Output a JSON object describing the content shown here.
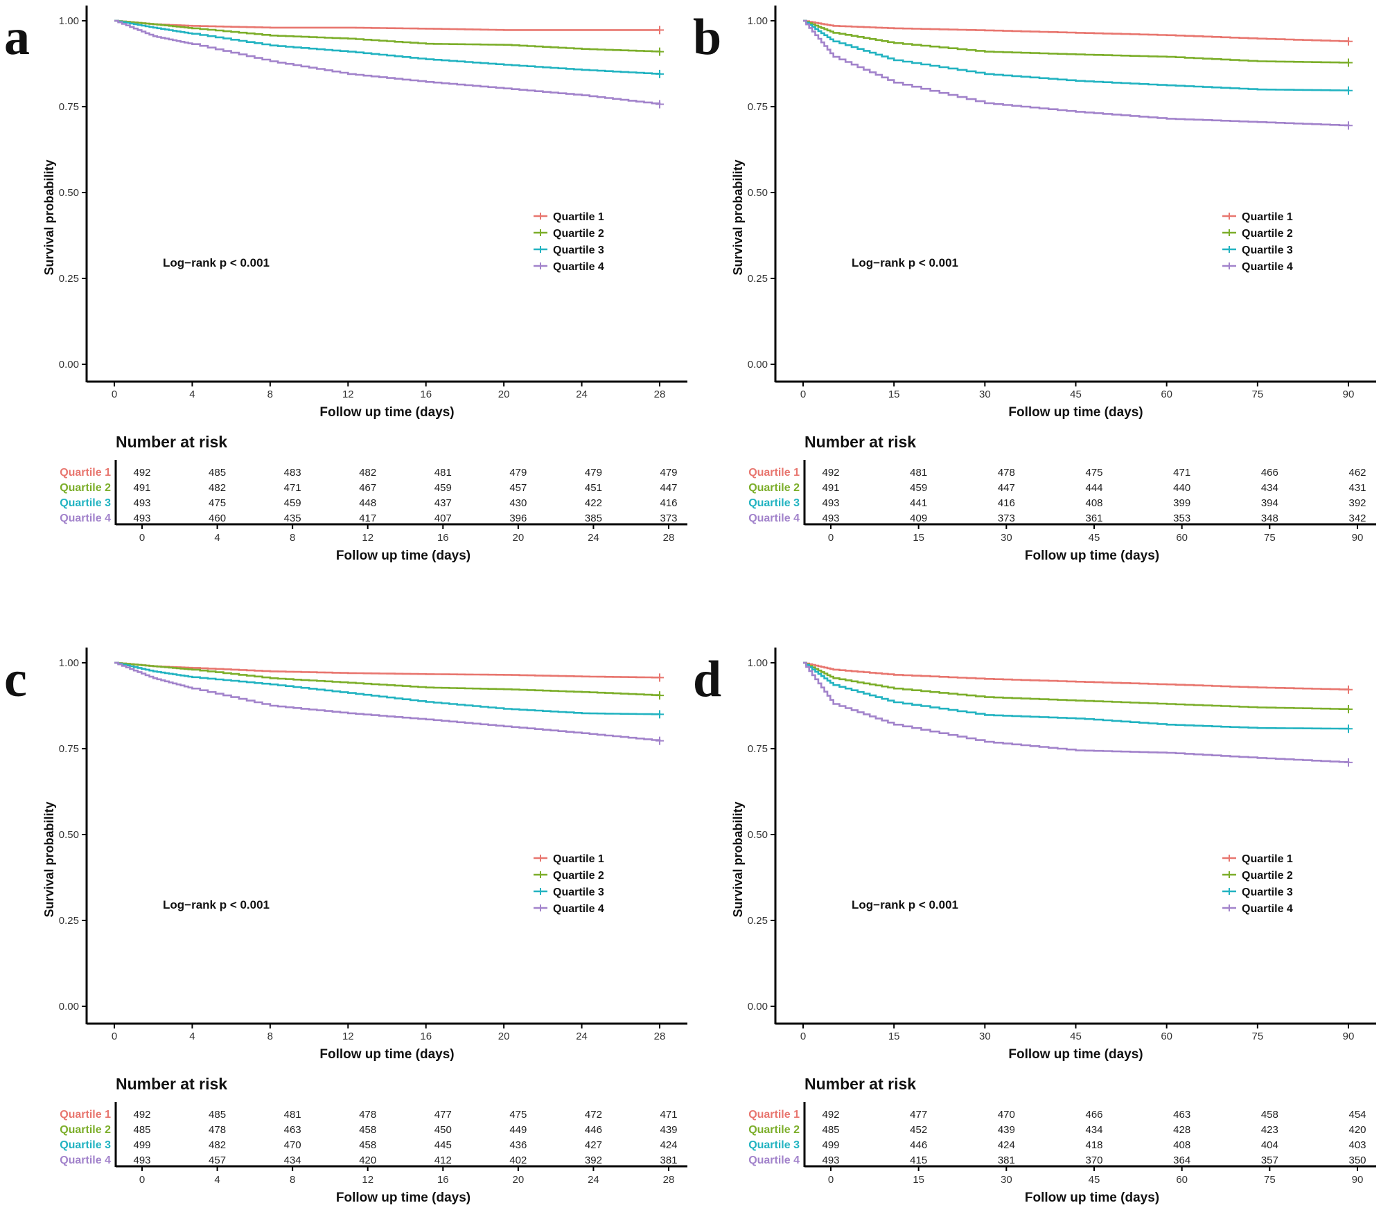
{
  "colors": {
    "Quartile 1": "#E8766F",
    "Quartile 2": "#7CAE2A",
    "Quartile 3": "#22B3C1",
    "Quartile 4": "#A283CB",
    "axis": "#000000",
    "text": "#222222"
  },
  "chart_data": [
    {
      "type": "line",
      "panel": "a",
      "ylabel": "Survival probability",
      "xlabel": "Follow up time (days)",
      "ylim": [
        0,
        1
      ],
      "yticks": [
        "0.00",
        "0.25",
        "0.50",
        "0.75",
        "1.00"
      ],
      "xlim": [
        0,
        28
      ],
      "xticks": [
        0,
        4,
        8,
        12,
        16,
        20,
        24,
        28
      ],
      "annotation": "Log−rank p < 0.001",
      "legend_position": "right-middle",
      "series": [
        {
          "name": "Quartile 1",
          "x": [
            0,
            2,
            4,
            8,
            12,
            16,
            20,
            24,
            28
          ],
          "y": [
            1.0,
            0.99,
            0.985,
            0.98,
            0.98,
            0.977,
            0.973,
            0.973,
            0.973
          ]
        },
        {
          "name": "Quartile 2",
          "x": [
            0,
            2,
            4,
            8,
            12,
            16,
            20,
            24,
            28
          ],
          "y": [
            1.0,
            0.99,
            0.978,
            0.957,
            0.948,
            0.933,
            0.93,
            0.918,
            0.91
          ]
        },
        {
          "name": "Quartile 3",
          "x": [
            0,
            2,
            4,
            8,
            12,
            16,
            20,
            24,
            28
          ],
          "y": [
            1.0,
            0.98,
            0.962,
            0.928,
            0.91,
            0.888,
            0.872,
            0.857,
            0.845
          ]
        },
        {
          "name": "Quartile 4",
          "x": [
            0,
            2,
            4,
            8,
            12,
            16,
            20,
            24,
            28
          ],
          "y": [
            1.0,
            0.955,
            0.932,
            0.882,
            0.845,
            0.822,
            0.803,
            0.783,
            0.757
          ]
        }
      ],
      "risk_table": {
        "title": "Number at risk",
        "times": [
          "0",
          "4",
          "8",
          "12",
          "16",
          "20",
          "24",
          "28"
        ],
        "rows": [
          {
            "name": "Quartile 1",
            "values": [
              "492",
              "485",
              "483",
              "482",
              "481",
              "479",
              "479",
              "479"
            ]
          },
          {
            "name": "Quartile 2",
            "values": [
              "491",
              "482",
              "471",
              "467",
              "459",
              "457",
              "451",
              "447"
            ]
          },
          {
            "name": "Quartile 3",
            "values": [
              "493",
              "475",
              "459",
              "448",
              "437",
              "430",
              "422",
              "416"
            ]
          },
          {
            "name": "Quartile 4",
            "values": [
              "493",
              "460",
              "435",
              "417",
              "407",
              "396",
              "385",
              "373"
            ]
          }
        ],
        "xlabel": "Follow up time (days)"
      }
    },
    {
      "type": "line",
      "panel": "b",
      "ylabel": "Survival probability",
      "xlabel": "Follow up time (days)",
      "ylim": [
        0,
        1
      ],
      "yticks": [
        "0.00",
        "0.25",
        "0.50",
        "0.75",
        "1.00"
      ],
      "xlim": [
        0,
        90
      ],
      "xticks": [
        0,
        15,
        30,
        45,
        60,
        75,
        90
      ],
      "annotation": "Log−rank p < 0.001",
      "legend_position": "right-middle",
      "series": [
        {
          "name": "Quartile 1",
          "x": [
            0,
            5,
            15,
            30,
            45,
            60,
            75,
            90
          ],
          "y": [
            1.0,
            0.985,
            0.978,
            0.972,
            0.965,
            0.958,
            0.948,
            0.94
          ]
        },
        {
          "name": "Quartile 2",
          "x": [
            0,
            5,
            15,
            30,
            45,
            60,
            75,
            90
          ],
          "y": [
            1.0,
            0.965,
            0.935,
            0.91,
            0.902,
            0.895,
            0.882,
            0.878
          ]
        },
        {
          "name": "Quartile 3",
          "x": [
            0,
            5,
            15,
            30,
            45,
            60,
            75,
            90
          ],
          "y": [
            1.0,
            0.94,
            0.885,
            0.845,
            0.825,
            0.812,
            0.8,
            0.797
          ]
        },
        {
          "name": "Quartile 4",
          "x": [
            0,
            5,
            15,
            30,
            45,
            60,
            75,
            90
          ],
          "y": [
            1.0,
            0.895,
            0.82,
            0.76,
            0.735,
            0.715,
            0.705,
            0.695
          ]
        }
      ],
      "risk_table": {
        "title": "Number at risk",
        "times": [
          "0",
          "15",
          "30",
          "45",
          "60",
          "75",
          "90"
        ],
        "rows": [
          {
            "name": "Quartile 1",
            "values": [
              "492",
              "481",
              "478",
              "475",
              "471",
              "466",
              "462"
            ]
          },
          {
            "name": "Quartile 2",
            "values": [
              "491",
              "459",
              "447",
              "444",
              "440",
              "434",
              "431"
            ]
          },
          {
            "name": "Quartile 3",
            "values": [
              "493",
              "441",
              "416",
              "408",
              "399",
              "394",
              "392"
            ]
          },
          {
            "name": "Quartile 4",
            "values": [
              "493",
              "409",
              "373",
              "361",
              "353",
              "348",
              "342"
            ]
          }
        ],
        "xlabel": "Follow up time (days)"
      }
    },
    {
      "type": "line",
      "panel": "c",
      "ylabel": "Survival probability",
      "xlabel": "Follow up time (days)",
      "ylim": [
        0,
        1
      ],
      "yticks": [
        "0.00",
        "0.25",
        "0.50",
        "0.75",
        "1.00"
      ],
      "xlim": [
        0,
        28
      ],
      "xticks": [
        0,
        4,
        8,
        12,
        16,
        20,
        24,
        28
      ],
      "annotation": "Log−rank p < 0.001",
      "legend_position": "right-middle",
      "series": [
        {
          "name": "Quartile 1",
          "x": [
            0,
            2,
            4,
            8,
            12,
            16,
            20,
            24,
            28
          ],
          "y": [
            1.0,
            0.99,
            0.985,
            0.975,
            0.97,
            0.967,
            0.965,
            0.96,
            0.957
          ]
        },
        {
          "name": "Quartile 2",
          "x": [
            0,
            2,
            4,
            8,
            12,
            16,
            20,
            24,
            28
          ],
          "y": [
            1.0,
            0.99,
            0.98,
            0.955,
            0.942,
            0.928,
            0.923,
            0.915,
            0.905
          ]
        },
        {
          "name": "Quartile 3",
          "x": [
            0,
            2,
            4,
            8,
            12,
            16,
            20,
            24,
            28
          ],
          "y": [
            1.0,
            0.975,
            0.958,
            0.937,
            0.912,
            0.886,
            0.866,
            0.853,
            0.85
          ]
        },
        {
          "name": "Quartile 4",
          "x": [
            0,
            2,
            4,
            8,
            12,
            16,
            20,
            24,
            28
          ],
          "y": [
            1.0,
            0.955,
            0.925,
            0.875,
            0.853,
            0.835,
            0.815,
            0.795,
            0.773
          ]
        }
      ],
      "risk_table": {
        "title": "Number at risk",
        "times": [
          "0",
          "4",
          "8",
          "12",
          "16",
          "20",
          "24",
          "28"
        ],
        "rows": [
          {
            "name": "Quartile 1",
            "values": [
              "492",
              "485",
              "481",
              "478",
              "477",
              "475",
              "472",
              "471"
            ]
          },
          {
            "name": "Quartile 2",
            "values": [
              "485",
              "478",
              "463",
              "458",
              "450",
              "449",
              "446",
              "439"
            ]
          },
          {
            "name": "Quartile 3",
            "values": [
              "499",
              "482",
              "470",
              "458",
              "445",
              "436",
              "427",
              "424"
            ]
          },
          {
            "name": "Quartile 4",
            "values": [
              "493",
              "457",
              "434",
              "420",
              "412",
              "402",
              "392",
              "381"
            ]
          }
        ],
        "xlabel": "Follow up time (days)"
      }
    },
    {
      "type": "line",
      "panel": "d",
      "ylabel": "Survival probability",
      "xlabel": "Follow up time (days)",
      "ylim": [
        0,
        1
      ],
      "yticks": [
        "0.00",
        "0.25",
        "0.50",
        "0.75",
        "1.00"
      ],
      "xlim": [
        0,
        90
      ],
      "xticks": [
        0,
        15,
        30,
        45,
        60,
        75,
        90
      ],
      "annotation": "Log−rank p < 0.001",
      "legend_position": "right-middle",
      "series": [
        {
          "name": "Quartile 1",
          "x": [
            0,
            5,
            15,
            30,
            45,
            60,
            75,
            90
          ],
          "y": [
            1.0,
            0.98,
            0.965,
            0.953,
            0.945,
            0.937,
            0.928,
            0.922
          ]
        },
        {
          "name": "Quartile 2",
          "x": [
            0,
            5,
            15,
            30,
            45,
            60,
            75,
            90
          ],
          "y": [
            1.0,
            0.955,
            0.925,
            0.9,
            0.89,
            0.88,
            0.87,
            0.865
          ]
        },
        {
          "name": "Quartile 3",
          "x": [
            0,
            5,
            15,
            30,
            45,
            60,
            75,
            90
          ],
          "y": [
            1.0,
            0.935,
            0.885,
            0.848,
            0.838,
            0.82,
            0.81,
            0.808
          ]
        },
        {
          "name": "Quartile 4",
          "x": [
            0,
            5,
            15,
            30,
            45,
            60,
            75,
            90
          ],
          "y": [
            1.0,
            0.88,
            0.82,
            0.77,
            0.745,
            0.738,
            0.723,
            0.71
          ]
        }
      ],
      "risk_table": {
        "title": "Number at risk",
        "times": [
          "0",
          "15",
          "30",
          "45",
          "60",
          "75",
          "90"
        ],
        "rows": [
          {
            "name": "Quartile 1",
            "values": [
              "492",
              "477",
              "470",
              "466",
              "463",
              "458",
              "454"
            ]
          },
          {
            "name": "Quartile 2",
            "values": [
              "485",
              "452",
              "439",
              "434",
              "428",
              "423",
              "420"
            ]
          },
          {
            "name": "Quartile 3",
            "values": [
              "499",
              "446",
              "424",
              "418",
              "408",
              "404",
              "403"
            ]
          },
          {
            "name": "Quartile 4",
            "values": [
              "493",
              "415",
              "381",
              "370",
              "364",
              "357",
              "350"
            ]
          }
        ],
        "xlabel": "Follow up time (days)"
      }
    }
  ]
}
